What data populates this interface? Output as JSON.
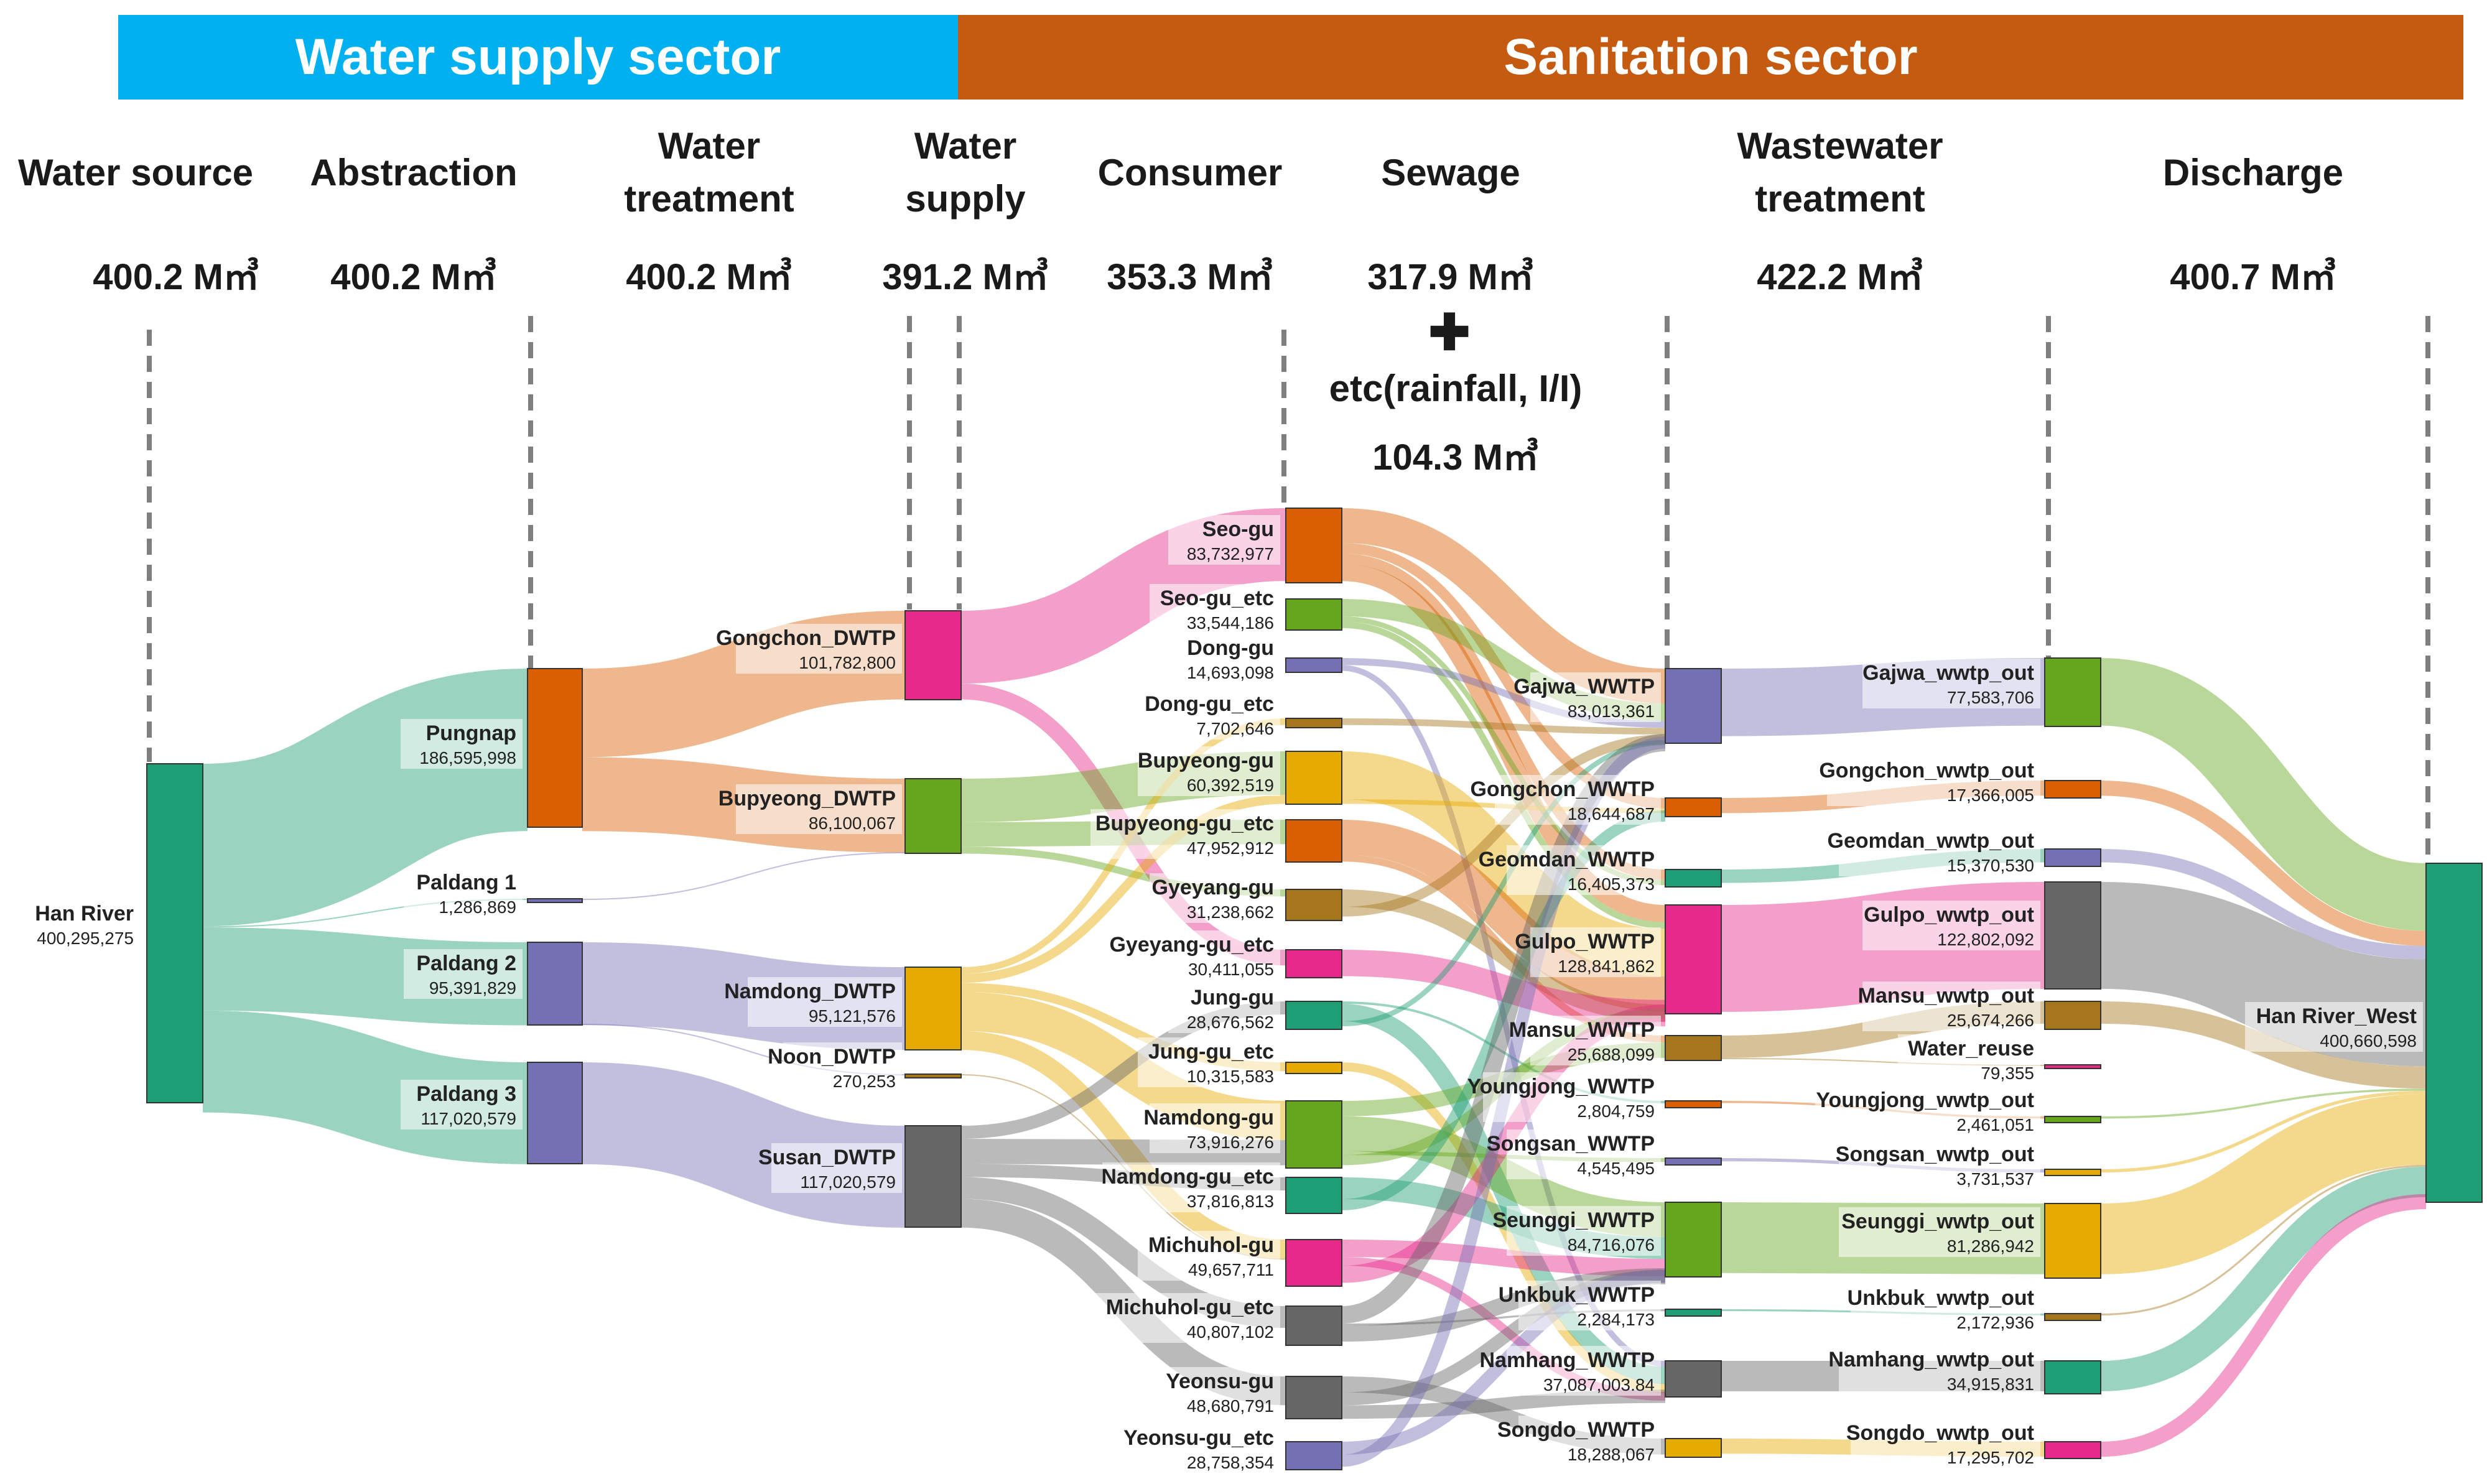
{
  "sectors": {
    "water": "Water supply sector",
    "sanitation": "Sanitation sector"
  },
  "stages": [
    {
      "id": "source",
      "l1": "",
      "l2": "Water source",
      "volume": "400.2 M㎥"
    },
    {
      "id": "abstraction",
      "l1": "",
      "l2": "Abstraction",
      "volume": "400.2 M㎥"
    },
    {
      "id": "treatment",
      "l1": "Water",
      "l2": "treatment",
      "volume": "400.2 M㎥"
    },
    {
      "id": "supply",
      "l1": "Water",
      "l2": "supply",
      "volume": "391.2 M㎥"
    },
    {
      "id": "consumer",
      "l1": "",
      "l2": "Consumer",
      "volume": "353.3 M㎥"
    },
    {
      "id": "sewage",
      "l1": "",
      "l2": "Sewage",
      "volume": "317.9 M㎥"
    },
    {
      "id": "wwt",
      "l1": "Wastewater",
      "l2": "treatment",
      "volume": "422.2 M㎥"
    },
    {
      "id": "discharge",
      "l1": "",
      "l2": "Discharge",
      "volume": "400.7 M㎥"
    }
  ],
  "extra_inflow": {
    "plus": "✚",
    "label": "etc(rainfall, I/I)",
    "volume": "104.3 M㎥"
  },
  "colors": {
    "teal": "#1e9e74",
    "orange": "#d95f02",
    "purple": "#7570b3",
    "pink": "#e7298a",
    "green": "#66a61e",
    "yellow": "#e6ab02",
    "brown": "#a6761d",
    "gray": "#666666"
  },
  "chart_data": {
    "type": "sankey",
    "units": "m³",
    "nodes": [
      {
        "id": "han",
        "label": "Han River",
        "value": "400,295,275",
        "color": "teal"
      },
      {
        "id": "pungnap",
        "label": "Pungnap",
        "value": "186,595,998",
        "color": "orange"
      },
      {
        "id": "paldang1",
        "label": "Paldang 1",
        "value": "1,286,869",
        "color": "purple"
      },
      {
        "id": "paldang2",
        "label": "Paldang 2",
        "value": "95,391,829",
        "color": "purple"
      },
      {
        "id": "paldang3",
        "label": "Paldang 3",
        "value": "117,020,579",
        "color": "purple"
      },
      {
        "id": "gongchon_dwtp",
        "label": "Gongchon_DWTP",
        "value": "101,782,800",
        "color": "pink"
      },
      {
        "id": "bupyeong_dwtp",
        "label": "Bupyeong_DWTP",
        "value": "86,100,067",
        "color": "green"
      },
      {
        "id": "namdong_dwtp",
        "label": "Namdong_DWTP",
        "value": "95,121,576",
        "color": "yellow"
      },
      {
        "id": "noon_dwtp",
        "label": "Noon_DWTP",
        "value": "270,253",
        "color": "brown"
      },
      {
        "id": "susan_dwtp",
        "label": "Susan_DWTP",
        "value": "117,020,579",
        "color": "gray"
      },
      {
        "id": "seo",
        "label": "Seo-gu",
        "value": "83,732,977",
        "color": "orange"
      },
      {
        "id": "seo_etc",
        "label": "Seo-gu_etc",
        "value": "33,544,186",
        "color": "green"
      },
      {
        "id": "dong",
        "label": "Dong-gu",
        "value": "14,693,098",
        "color": "purple"
      },
      {
        "id": "dong_etc",
        "label": "Dong-gu_etc",
        "value": "7,702,646",
        "color": "brown"
      },
      {
        "id": "bupyeong",
        "label": "Bupyeong-gu",
        "value": "60,392,519",
        "color": "yellow"
      },
      {
        "id": "bupyeong_etc",
        "label": "Bupyeong-gu_etc",
        "value": "47,952,912",
        "color": "orange"
      },
      {
        "id": "gyeyang",
        "label": "Gyeyang-gu",
        "value": "31,238,662",
        "color": "brown"
      },
      {
        "id": "gyeyang_etc",
        "label": "Gyeyang-gu_etc",
        "value": "30,411,055",
        "color": "pink"
      },
      {
        "id": "jung",
        "label": "Jung-gu",
        "value": "28,676,562",
        "color": "teal"
      },
      {
        "id": "jung_etc",
        "label": "Jung-gu_etc",
        "value": "10,315,583",
        "color": "yellow"
      },
      {
        "id": "namdong",
        "label": "Namdong-gu",
        "value": "73,916,276",
        "color": "green"
      },
      {
        "id": "namdong_etc",
        "label": "Namdong-gu_etc",
        "value": "37,816,813",
        "color": "teal"
      },
      {
        "id": "michuhol",
        "label": "Michuhol-gu",
        "value": "49,657,711",
        "color": "pink"
      },
      {
        "id": "michuhol_etc",
        "label": "Michuhol-gu_etc",
        "value": "40,807,102",
        "color": "gray"
      },
      {
        "id": "yeonsu",
        "label": "Yeonsu-gu",
        "value": "48,680,791",
        "color": "gray"
      },
      {
        "id": "yeonsu_etc",
        "label": "Yeonsu-gu_etc",
        "value": "28,758,354",
        "color": "purple"
      },
      {
        "id": "gajwa",
        "label": "Gajwa_WWTP",
        "value": "83,013,361",
        "color": "purple"
      },
      {
        "id": "gongchon_w",
        "label": "Gongchon_WWTP",
        "value": "18,644,687",
        "color": "orange"
      },
      {
        "id": "geomdan",
        "label": "Geomdan_WWTP",
        "value": "16,405,373",
        "color": "teal"
      },
      {
        "id": "gulpo",
        "label": "Gulpo_WWTP",
        "value": "128,841,862",
        "color": "pink"
      },
      {
        "id": "mansu",
        "label": "Mansu_WWTP",
        "value": "25,688,099",
        "color": "brown"
      },
      {
        "id": "youngjong",
        "label": "Youngjong_WWTP",
        "value": "2,804,759",
        "color": "orange"
      },
      {
        "id": "songsan",
        "label": "Songsan_WWTP",
        "value": "4,545,495",
        "color": "purple"
      },
      {
        "id": "seunggi",
        "label": "Seunggi_WWTP",
        "value": "84,716,076",
        "color": "green"
      },
      {
        "id": "unkbuk",
        "label": "Unkbuk_WWTP",
        "value": "2,284,173",
        "color": "teal"
      },
      {
        "id": "namhang",
        "label": "Namhang_WWTP",
        "value": "37,087,003.84",
        "color": "gray"
      },
      {
        "id": "songdo",
        "label": "Songdo_WWTP",
        "value": "18,288,067",
        "color": "yellow"
      },
      {
        "id": "gajwa_out",
        "label": "Gajwa_wwtp_out",
        "value": "77,583,706",
        "color": "green"
      },
      {
        "id": "gongchon_out",
        "label": "Gongchon_wwtp_out",
        "value": "17,366,005",
        "color": "orange"
      },
      {
        "id": "geomdan_out",
        "label": "Geomdan_wwtp_out",
        "value": "15,370,530",
        "color": "purple"
      },
      {
        "id": "gulpo_out",
        "label": "Gulpo_wwtp_out",
        "value": "122,802,092",
        "color": "gray"
      },
      {
        "id": "mansu_out",
        "label": "Mansu_wwtp_out",
        "value": "25,674,266",
        "color": "brown"
      },
      {
        "id": "reuse",
        "label": "Water_reuse",
        "value": "79,355",
        "color": "pink"
      },
      {
        "id": "youngjong_out",
        "label": "Youngjong_wwtp_out",
        "value": "2,461,051",
        "color": "green"
      },
      {
        "id": "songsan_out",
        "label": "Songsan_wwtp_out",
        "value": "3,731,537",
        "color": "yellow"
      },
      {
        "id": "seunggi_out",
        "label": "Seunggi_wwtp_out",
        "value": "81,286,942",
        "color": "yellow"
      },
      {
        "id": "unkbuk_out",
        "label": "Unkbuk_wwtp_out",
        "value": "2,172,936",
        "color": "brown"
      },
      {
        "id": "namhang_out",
        "label": "Namhang_wwtp_out",
        "value": "34,915,831",
        "color": "teal"
      },
      {
        "id": "songdo_out",
        "label": "Songdo_wwtp_out",
        "value": "17,295,702",
        "color": "pink"
      },
      {
        "id": "hanwest",
        "label": "Han River_West",
        "value": "400,660,598",
        "color": "teal"
      }
    ],
    "links": [
      {
        "source": "han",
        "target": "pungnap",
        "value": 186.6
      },
      {
        "source": "han",
        "target": "paldang1",
        "value": 1.29
      },
      {
        "source": "han",
        "target": "paldang2",
        "value": 95.39
      },
      {
        "source": "han",
        "target": "paldang3",
        "value": 117.02
      },
      {
        "source": "pungnap",
        "target": "gongchon_dwtp",
        "value": 101.78
      },
      {
        "source": "pungnap",
        "target": "bupyeong_dwtp",
        "value": 84.82
      },
      {
        "source": "paldang1",
        "target": "bupyeong_dwtp",
        "value": 1.29
      },
      {
        "source": "paldang2",
        "target": "namdong_dwtp",
        "value": 95.12
      },
      {
        "source": "paldang2",
        "target": "noon_dwtp",
        "value": 0.27
      },
      {
        "source": "paldang3",
        "target": "susan_dwtp",
        "value": 117.02
      },
      {
        "source": "gongchon_dwtp",
        "target": "seo",
        "value": 83.7
      },
      {
        "source": "gongchon_dwtp",
        "target": "gyeyang_etc",
        "value": 18.1
      },
      {
        "source": "bupyeong_dwtp",
        "target": "bupyeong",
        "value": 50.0
      },
      {
        "source": "bupyeong_dwtp",
        "target": "bupyeong_etc",
        "value": 28.0
      },
      {
        "source": "bupyeong_dwtp",
        "target": "gyeyang",
        "value": 8.1
      },
      {
        "source": "namdong_dwtp",
        "target": "dong_etc",
        "value": 7.7
      },
      {
        "source": "namdong_dwtp",
        "target": "bupyeong",
        "value": 10.4
      },
      {
        "source": "namdong_dwtp",
        "target": "jung_etc",
        "value": 10.3
      },
      {
        "source": "namdong_dwtp",
        "target": "namdong",
        "value": 45.0
      },
      {
        "source": "namdong_dwtp",
        "target": "michuhol",
        "value": 21.7
      },
      {
        "source": "noon_dwtp",
        "target": "michuhol",
        "value": 0.27
      },
      {
        "source": "susan_dwtp",
        "target": "jung",
        "value": 15.0
      },
      {
        "source": "susan_dwtp",
        "target": "namdong",
        "value": 28.9
      },
      {
        "source": "susan_dwtp",
        "target": "namdong_etc",
        "value": 15.0
      },
      {
        "source": "susan_dwtp",
        "target": "michuhol_etc",
        "value": 25.0
      },
      {
        "source": "susan_dwtp",
        "target": "yeonsu",
        "value": 33.1
      },
      {
        "source": "seo",
        "target": "gajwa",
        "value": 40.0
      },
      {
        "source": "seo",
        "target": "gongchon_w",
        "value": 12.0
      },
      {
        "source": "seo",
        "target": "geomdan",
        "value": 12.0
      },
      {
        "source": "seo",
        "target": "gulpo",
        "value": 19.7
      },
      {
        "source": "seo_etc",
        "target": "gajwa",
        "value": 20.0
      },
      {
        "source": "seo_etc",
        "target": "geomdan",
        "value": 6.0
      },
      {
        "source": "seo_etc",
        "target": "gulpo",
        "value": 7.5
      },
      {
        "source": "dong",
        "target": "gajwa",
        "value": 8.0
      },
      {
        "source": "dong",
        "target": "namhang",
        "value": 6.7
      },
      {
        "source": "dong_etc",
        "target": "gajwa",
        "value": 7.7
      },
      {
        "source": "bupyeong",
        "target": "gulpo",
        "value": 55.0
      },
      {
        "source": "bupyeong",
        "target": "gongchon_w",
        "value": 5.4
      },
      {
        "source": "bupyeong_etc",
        "target": "gulpo",
        "value": 40.0
      },
      {
        "source": "bupyeong_etc",
        "target": "mansu",
        "value": 8.0
      },
      {
        "source": "gyeyang",
        "target": "gulpo",
        "value": 20.0
      },
      {
        "source": "gyeyang",
        "target": "gajwa",
        "value": 11.2
      },
      {
        "source": "gyeyang_etc",
        "target": "gulpo",
        "value": 30.4
      },
      {
        "source": "jung",
        "target": "youngjong",
        "value": 2.8
      },
      {
        "source": "jung",
        "target": "namhang",
        "value": 20.0
      },
      {
        "source": "jung",
        "target": "gajwa",
        "value": 5.9
      },
      {
        "source": "jung_etc",
        "target": "namhang",
        "value": 10.3
      },
      {
        "source": "namdong",
        "target": "mansu",
        "value": 17.7
      },
      {
        "source": "namdong",
        "target": "seunggi",
        "value": 40.0
      },
      {
        "source": "namdong",
        "target": "songsan",
        "value": 4.5
      },
      {
        "source": "namdong",
        "target": "gulpo",
        "value": 11.7
      },
      {
        "source": "namdong_etc",
        "target": "seunggi",
        "value": 25.0
      },
      {
        "source": "namdong_etc",
        "target": "gongchon_w",
        "value": 12.8
      },
      {
        "source": "michuhol",
        "target": "seunggi",
        "value": 20.0
      },
      {
        "source": "michuhol",
        "target": "namhang",
        "value": 10.0
      },
      {
        "source": "michuhol",
        "target": "gulpo",
        "value": 19.7
      },
      {
        "source": "michuhol_etc",
        "target": "gajwa",
        "value": 20.0
      },
      {
        "source": "michuhol_etc",
        "target": "unkbuk",
        "value": 2.3
      },
      {
        "source": "michuhol_etc",
        "target": "seunggi",
        "value": 18.5
      },
      {
        "source": "yeonsu",
        "target": "songdo",
        "value": 18.3
      },
      {
        "source": "yeonsu",
        "target": "seunggi",
        "value": 15.0
      },
      {
        "source": "yeonsu",
        "target": "namhang",
        "value": 15.4
      },
      {
        "source": "yeonsu_etc",
        "target": "seunggi",
        "value": 15.0
      },
      {
        "source": "yeonsu_etc",
        "target": "gajwa",
        "value": 13.8
      },
      {
        "source": "gajwa",
        "target": "gajwa_out",
        "value": 77.58
      },
      {
        "source": "gongchon_w",
        "target": "gongchon_out",
        "value": 17.37
      },
      {
        "source": "geomdan",
        "target": "geomdan_out",
        "value": 15.37
      },
      {
        "source": "gulpo",
        "target": "gulpo_out",
        "value": 122.8
      },
      {
        "source": "mansu",
        "target": "mansu_out",
        "value": 25.67
      },
      {
        "source": "mansu",
        "target": "reuse",
        "value": 0.08
      },
      {
        "source": "youngjong",
        "target": "youngjong_out",
        "value": 2.46
      },
      {
        "source": "songsan",
        "target": "songsan_out",
        "value": 3.73
      },
      {
        "source": "seunggi",
        "target": "seunggi_out",
        "value": 81.29
      },
      {
        "source": "unkbuk",
        "target": "unkbuk_out",
        "value": 2.17
      },
      {
        "source": "namhang",
        "target": "namhang_out",
        "value": 34.92
      },
      {
        "source": "songdo",
        "target": "songdo_out",
        "value": 17.3
      },
      {
        "source": "gajwa_out",
        "target": "hanwest",
        "value": 77.58
      },
      {
        "source": "gongchon_out",
        "target": "hanwest",
        "value": 17.37
      },
      {
        "source": "geomdan_out",
        "target": "hanwest",
        "value": 15.37
      },
      {
        "source": "gulpo_out",
        "target": "hanwest",
        "value": 122.8
      },
      {
        "source": "mansu_out",
        "target": "hanwest",
        "value": 25.67
      },
      {
        "source": "youngjong_out",
        "target": "hanwest",
        "value": 2.46
      },
      {
        "source": "songsan_out",
        "target": "hanwest",
        "value": 3.73
      },
      {
        "source": "seunggi_out",
        "target": "hanwest",
        "value": 81.29
      },
      {
        "source": "unkbuk_out",
        "target": "hanwest",
        "value": 2.17
      },
      {
        "source": "namhang_out",
        "target": "hanwest",
        "value": 34.92
      },
      {
        "source": "songdo_out",
        "target": "hanwest",
        "value": 17.3
      }
    ]
  }
}
